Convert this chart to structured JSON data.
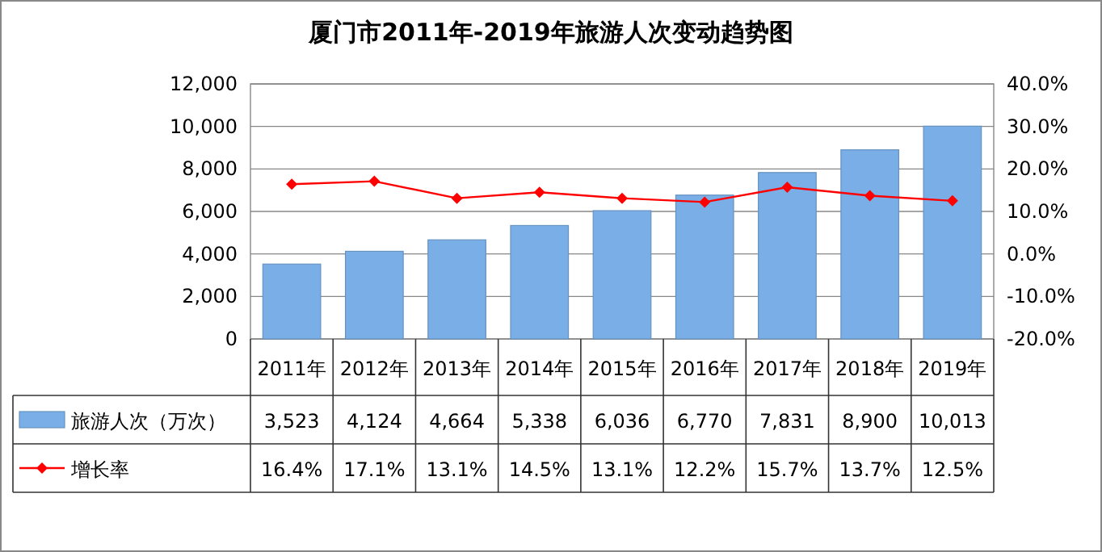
{
  "chart_data": {
    "type": "bar",
    "title": "厦门市2011年-2019年旅游人次变动趋势图",
    "categories": [
      "2011年",
      "2012年",
      "2013年",
      "2014年",
      "2015年",
      "2016年",
      "2017年",
      "2018年",
      "2019年"
    ],
    "series": [
      {
        "name": "旅游人次（万次）",
        "color": "#7aaee6",
        "values": [
          3523,
          4124,
          4664,
          5338,
          6036,
          6770,
          7831,
          8900,
          10013
        ],
        "value_labels": [
          "3,523",
          "4,124",
          "4,664",
          "5,338",
          "6,036",
          "6,770",
          "7,831",
          "8,900",
          "10,013"
        ]
      },
      {
        "name": "增长率",
        "type": "line",
        "axis": "y2",
        "color": "#ff0000",
        "marker": "diamond",
        "values": [
          16.4,
          17.1,
          13.1,
          14.5,
          13.1,
          12.2,
          15.7,
          13.7,
          12.5
        ],
        "value_labels": [
          "16.4%",
          "17.1%",
          "13.1%",
          "14.5%",
          "13.1%",
          "12.2%",
          "15.7%",
          "13.7%",
          "12.5%"
        ]
      }
    ],
    "ylim": [
      0,
      12000
    ],
    "yticks": [
      {
        "value": 0,
        "label": "0"
      },
      {
        "value": 2000,
        "label": "2,000"
      },
      {
        "value": 4000,
        "label": "4,000"
      },
      {
        "value": 6000,
        "label": "6,000"
      },
      {
        "value": 8000,
        "label": "8,000"
      },
      {
        "value": 10000,
        "label": "10,000"
      },
      {
        "value": 12000,
        "label": "12,000"
      }
    ],
    "y2lim": [
      -20,
      40
    ],
    "y2ticks": [
      {
        "value": -20,
        "label": "-20.0%"
      },
      {
        "value": -10,
        "label": "-10.0%"
      },
      {
        "value": 0,
        "label": "0.0%"
      },
      {
        "value": 10,
        "label": "10.0%"
      },
      {
        "value": 20,
        "label": "20.0%"
      },
      {
        "value": 30,
        "label": "30.0%"
      },
      {
        "value": 40,
        "label": "40.0%"
      }
    ],
    "grid": "y",
    "legend": "bottom"
  }
}
